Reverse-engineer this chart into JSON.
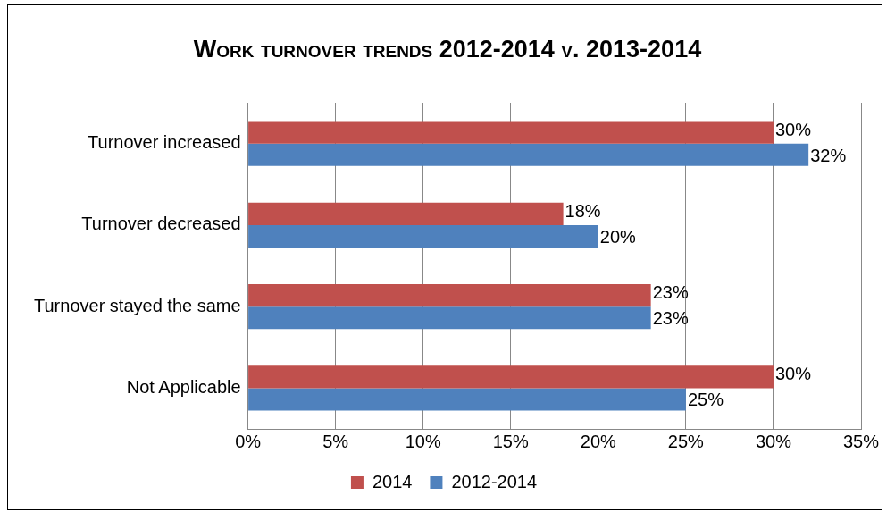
{
  "chart_data": {
    "type": "bar",
    "orientation": "horizontal",
    "title": "Work turnover trends 2012-2014 v. 2013-2014",
    "categories": [
      "Turnover increased",
      "Turnover decreased",
      "Turnover stayed the same",
      "Not Applicable"
    ],
    "series": [
      {
        "name": "2014",
        "color": "#c0504d",
        "values": [
          30,
          18,
          23,
          30
        ],
        "value_labels": [
          "30%",
          "18%",
          "23%",
          "30%"
        ]
      },
      {
        "name": "2012-2014",
        "color": "#4f81bd",
        "values": [
          32,
          20,
          23,
          25
        ],
        "value_labels": [
          "32%",
          "20%",
          "23%",
          "25%"
        ]
      }
    ],
    "xlim": [
      0,
      35
    ],
    "xticks": [
      {
        "value": 0,
        "label": "0%"
      },
      {
        "value": 5,
        "label": "5%"
      },
      {
        "value": 10,
        "label": "10%"
      },
      {
        "value": 15,
        "label": "15%"
      },
      {
        "value": 20,
        "label": "20%"
      },
      {
        "value": 25,
        "label": "25%"
      },
      {
        "value": 30,
        "label": "30%"
      },
      {
        "value": 35,
        "label": "35%"
      }
    ],
    "grid": "x",
    "legend": "bottom"
  }
}
